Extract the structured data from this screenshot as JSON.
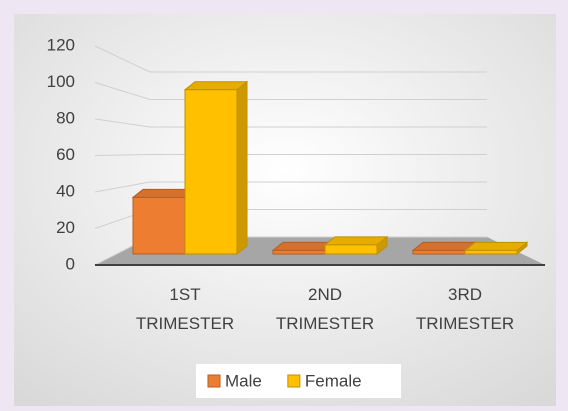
{
  "chart_data": {
    "type": "bar3d",
    "categories": [
      "1ST TRIMESTER",
      "2ND TRIMESTER",
      "3RD TRIMESTER"
    ],
    "series": [
      {
        "name": "Male",
        "color": "#ed7d31",
        "values": [
          31,
          2,
          2
        ]
      },
      {
        "name": "Female",
        "color": "#ffc000",
        "values": [
          90,
          5,
          2
        ]
      }
    ],
    "ylim": [
      0,
      120
    ],
    "yticks": [
      0,
      20,
      40,
      60,
      80,
      100,
      120
    ],
    "grid": true,
    "legend": "bottom"
  }
}
